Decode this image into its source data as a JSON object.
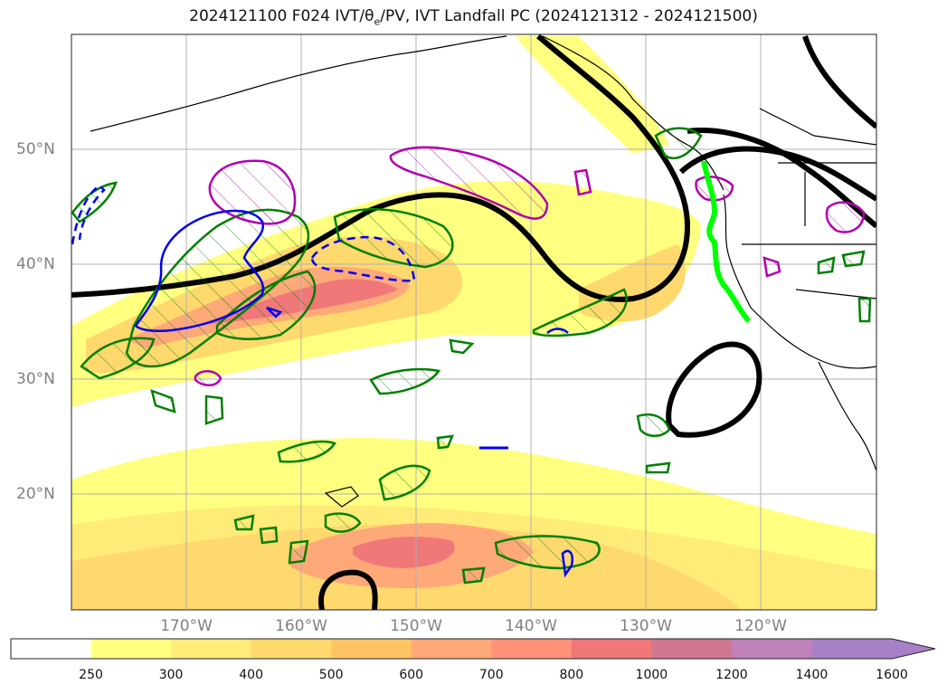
{
  "title": {
    "prefix": "2024121100 F024 IVT/θ",
    "sub": "e",
    "suffix": "/PV, IVT Landfall PC (2024121312 - 2024121500)"
  },
  "map": {
    "lat_labels": [
      "50°N",
      "40°N",
      "30°N",
      "20°N"
    ],
    "lon_labels": [
      "170°W",
      "160°W",
      "150°W",
      "140°W",
      "130°W",
      "120°W"
    ],
    "grid": true
  },
  "colorbar": {
    "levels": [
      "250",
      "300",
      "400",
      "500",
      "600",
      "700",
      "800",
      "1000",
      "1200",
      "1400",
      "1600"
    ],
    "colors": [
      "#ffffff",
      "#ffff80",
      "#ffeb78",
      "#ffd86e",
      "#ffc464",
      "#ffa878",
      "#ff9278",
      "#f07878",
      "#d07890",
      "#c080b8",
      "#a880c8"
    ],
    "extend": "max"
  },
  "colors": {
    "ivt_light": "#ffff80",
    "ivt_mid": "#ffd86e",
    "ivt_high": "#ff9278",
    "theta_e": "#000000",
    "pv_green": "#008000",
    "pv_magenta": "#b000b0",
    "pv_blue": "#0000ee",
    "landfall": "#00ff00"
  }
}
